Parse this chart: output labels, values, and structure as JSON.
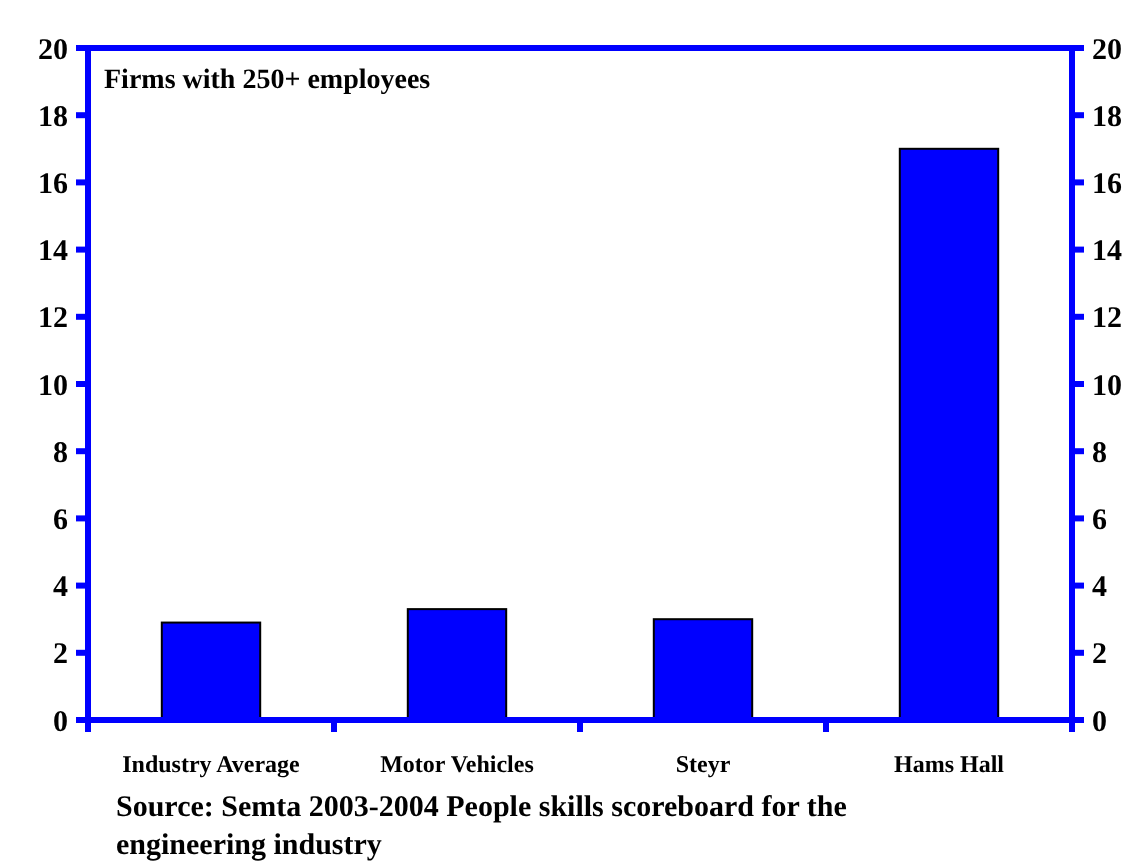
{
  "chart_data": {
    "type": "bar",
    "categories": [
      "Industry Average",
      "Motor Vehicles",
      "Steyr",
      "Hams Hall"
    ],
    "values": [
      2.9,
      3.3,
      3.0,
      17.0
    ],
    "color": "#0000ff",
    "ylim": [
      0,
      20
    ],
    "yticks": [
      0,
      2,
      4,
      6,
      8,
      10,
      12,
      14,
      16,
      18,
      20
    ],
    "y2lim": [
      0,
      20
    ],
    "y2ticks": [
      0,
      2,
      4,
      6,
      8,
      10,
      12,
      14,
      16,
      18,
      20
    ],
    "annotations": [
      "Firms with 250+ employees",
      "Source: Semta 2003-2004 People skills scoreboard for the engineering industry"
    ]
  }
}
